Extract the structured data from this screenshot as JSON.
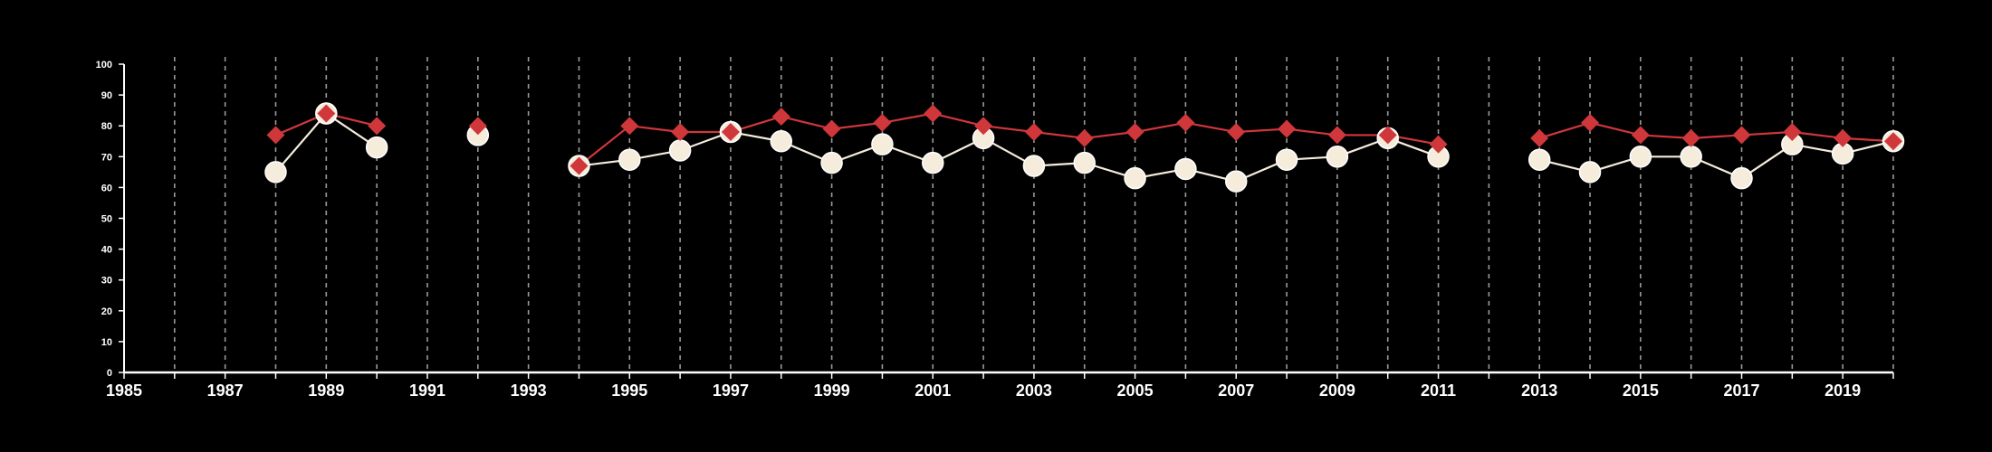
{
  "chart_data": {
    "type": "line",
    "title": "",
    "xlabel": "",
    "ylabel": "",
    "xlim": [
      1985,
      2020
    ],
    "ylim": [
      0,
      100
    ],
    "y_ticks": [
      0,
      10,
      20,
      30,
      40,
      50,
      60,
      70,
      80,
      90,
      100
    ],
    "x_ticks": [
      1985,
      1987,
      1989,
      1991,
      1993,
      1995,
      1997,
      1999,
      2001,
      2003,
      2005,
      2007,
      2009,
      2011,
      2013,
      2015,
      2017,
      2019
    ],
    "grid": "vertical dashed lines at each year",
    "background": "#000000",
    "series": [
      {
        "marker": "diamond",
        "color": "#d0373b",
        "points": [
          [
            1988,
            77
          ],
          [
            1989,
            84
          ],
          [
            1990,
            80
          ],
          [
            1992,
            80
          ],
          [
            1994,
            67
          ],
          [
            1995,
            80
          ],
          [
            1996,
            78
          ],
          [
            1997,
            78
          ],
          [
            1998,
            83
          ],
          [
            1999,
            79
          ],
          [
            2000,
            81
          ],
          [
            2001,
            84
          ],
          [
            2002,
            80
          ],
          [
            2003,
            78
          ],
          [
            2004,
            76
          ],
          [
            2005,
            78
          ],
          [
            2006,
            81
          ],
          [
            2007,
            78
          ],
          [
            2008,
            79
          ],
          [
            2009,
            77
          ],
          [
            2010,
            77
          ],
          [
            2011,
            74
          ],
          [
            2013,
            76
          ],
          [
            2014,
            81
          ],
          [
            2015,
            77
          ],
          [
            2016,
            76
          ],
          [
            2017,
            77
          ],
          [
            2018,
            78
          ],
          [
            2019,
            76
          ],
          [
            2020,
            75
          ]
        ]
      },
      {
        "marker": "circle",
        "color": "#f5ecdc",
        "points": [
          [
            1988,
            65
          ],
          [
            1989,
            84
          ],
          [
            1990,
            73
          ],
          [
            1992,
            77
          ],
          [
            1994,
            67
          ],
          [
            1995,
            69
          ],
          [
            1996,
            72
          ],
          [
            1997,
            78
          ],
          [
            1998,
            75
          ],
          [
            1999,
            68
          ],
          [
            2000,
            74
          ],
          [
            2001,
            68
          ],
          [
            2002,
            76
          ],
          [
            2003,
            67
          ],
          [
            2004,
            68
          ],
          [
            2005,
            63
          ],
          [
            2006,
            66
          ],
          [
            2007,
            62
          ],
          [
            2008,
            69
          ],
          [
            2009,
            70
          ],
          [
            2010,
            76
          ],
          [
            2011,
            70
          ],
          [
            2013,
            69
          ],
          [
            2014,
            65
          ],
          [
            2015,
            70
          ],
          [
            2016,
            70
          ],
          [
            2017,
            63
          ],
          [
            2018,
            74
          ],
          [
            2019,
            71
          ],
          [
            2020,
            75
          ]
        ]
      }
    ]
  }
}
